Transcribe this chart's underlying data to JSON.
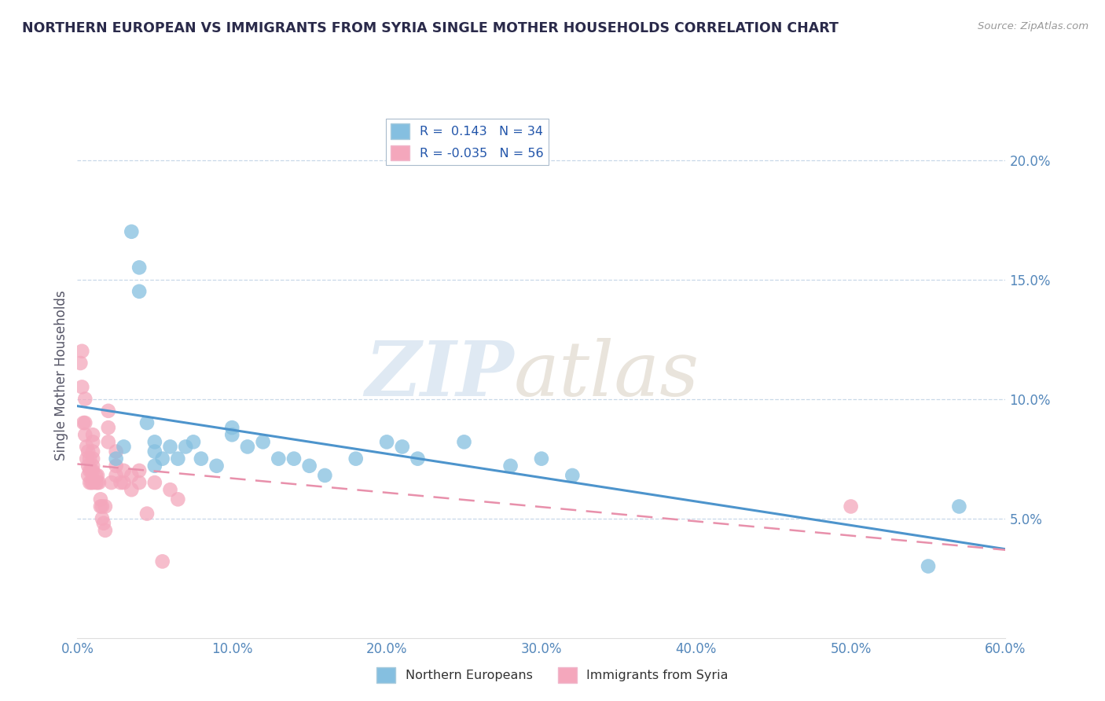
{
  "title": "NORTHERN EUROPEAN VS IMMIGRANTS FROM SYRIA SINGLE MOTHER HOUSEHOLDS CORRELATION CHART",
  "source_text": "Source: ZipAtlas.com",
  "ylabel": "Single Mother Households",
  "xlim": [
    0.0,
    0.6
  ],
  "ylim": [
    0.0,
    0.22
  ],
  "yticks": [
    0.05,
    0.1,
    0.15,
    0.2
  ],
  "xticks": [
    0.0,
    0.1,
    0.2,
    0.3,
    0.4,
    0.5,
    0.6
  ],
  "legend1_r": " 0.143",
  "legend1_n": "34",
  "legend2_r": "-0.035",
  "legend2_n": "56",
  "color_blue": "#85bfe0",
  "color_pink": "#f4a7bc",
  "trend_blue": "#4d94cc",
  "trend_pink": "#e890ab",
  "blue_x": [
    0.025,
    0.03,
    0.035,
    0.04,
    0.04,
    0.045,
    0.05,
    0.05,
    0.05,
    0.055,
    0.06,
    0.065,
    0.07,
    0.075,
    0.08,
    0.09,
    0.1,
    0.1,
    0.11,
    0.12,
    0.13,
    0.14,
    0.15,
    0.16,
    0.18,
    0.2,
    0.21,
    0.22,
    0.25,
    0.28,
    0.3,
    0.32,
    0.55,
    0.57
  ],
  "blue_y": [
    0.075,
    0.08,
    0.17,
    0.155,
    0.145,
    0.09,
    0.082,
    0.078,
    0.072,
    0.075,
    0.08,
    0.075,
    0.08,
    0.082,
    0.075,
    0.072,
    0.085,
    0.088,
    0.08,
    0.082,
    0.075,
    0.075,
    0.072,
    0.068,
    0.075,
    0.082,
    0.08,
    0.075,
    0.082,
    0.072,
    0.075,
    0.068,
    0.03,
    0.055
  ],
  "pink_x": [
    0.002,
    0.003,
    0.003,
    0.004,
    0.005,
    0.005,
    0.005,
    0.006,
    0.006,
    0.007,
    0.007,
    0.007,
    0.008,
    0.008,
    0.008,
    0.009,
    0.009,
    0.01,
    0.01,
    0.01,
    0.01,
    0.01,
    0.01,
    0.01,
    0.012,
    0.012,
    0.013,
    0.013,
    0.014,
    0.015,
    0.015,
    0.016,
    0.016,
    0.017,
    0.018,
    0.018,
    0.02,
    0.02,
    0.02,
    0.022,
    0.025,
    0.025,
    0.025,
    0.028,
    0.03,
    0.03,
    0.035,
    0.035,
    0.04,
    0.04,
    0.045,
    0.05,
    0.055,
    0.06,
    0.065,
    0.5
  ],
  "pink_y": [
    0.115,
    0.12,
    0.105,
    0.09,
    0.085,
    0.09,
    0.1,
    0.075,
    0.08,
    0.068,
    0.072,
    0.078,
    0.065,
    0.07,
    0.075,
    0.065,
    0.07,
    0.065,
    0.07,
    0.072,
    0.075,
    0.078,
    0.082,
    0.085,
    0.065,
    0.068,
    0.065,
    0.068,
    0.065,
    0.055,
    0.058,
    0.05,
    0.055,
    0.048,
    0.045,
    0.055,
    0.082,
    0.088,
    0.095,
    0.065,
    0.068,
    0.072,
    0.078,
    0.065,
    0.065,
    0.07,
    0.062,
    0.068,
    0.065,
    0.07,
    0.052,
    0.065,
    0.032,
    0.062,
    0.058,
    0.055
  ]
}
